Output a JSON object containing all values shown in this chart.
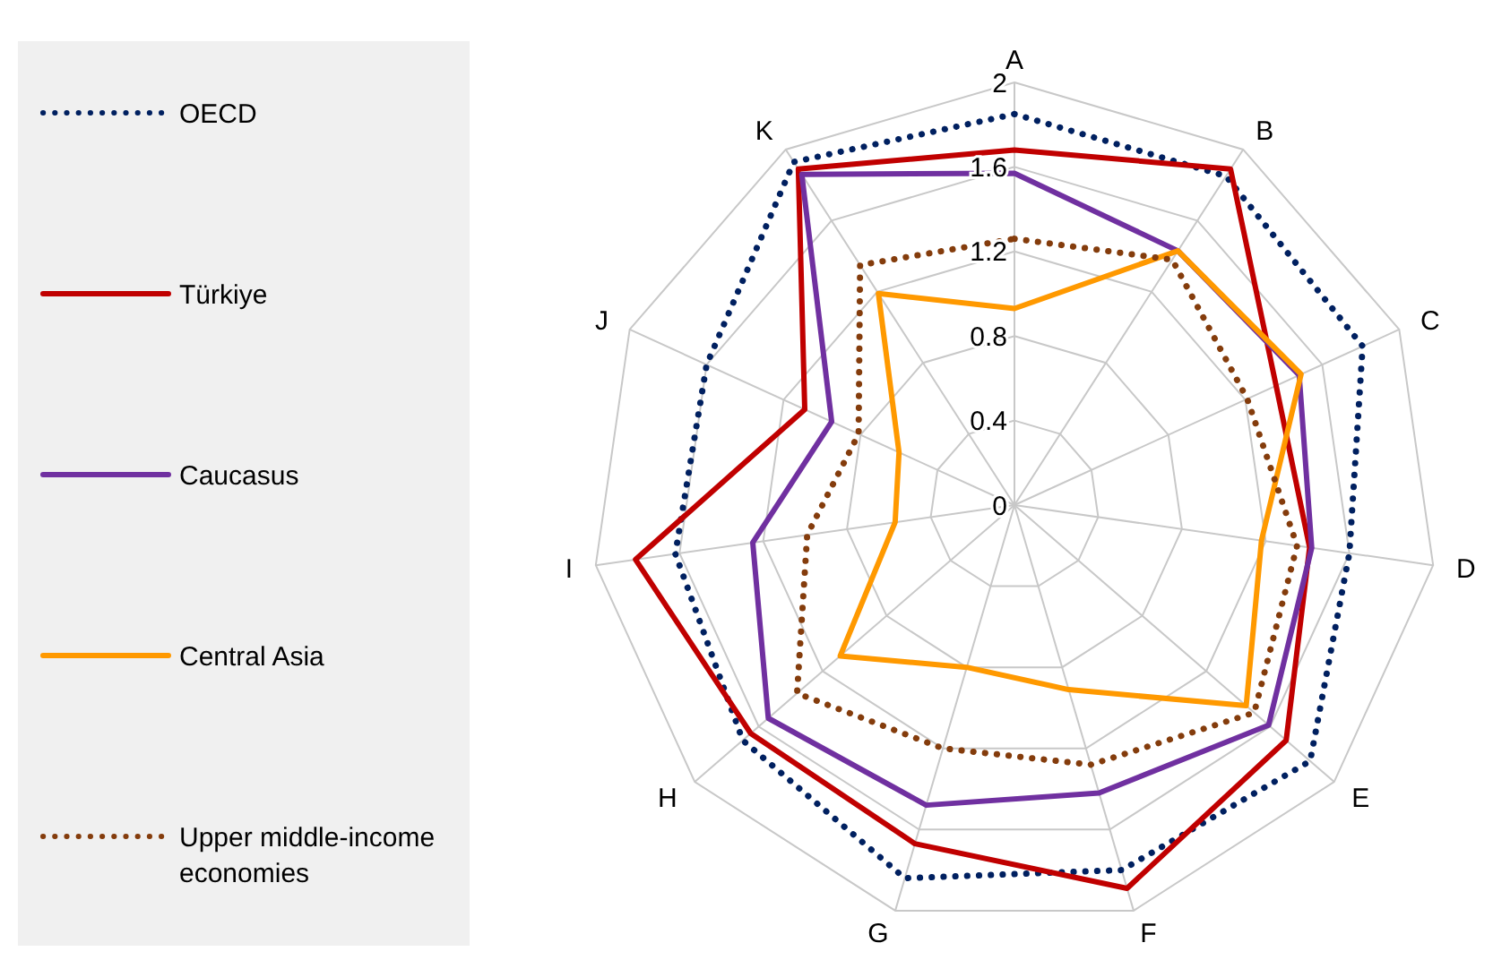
{
  "chart_data": {
    "type": "radar",
    "categories": [
      "A",
      "B",
      "C",
      "D",
      "E",
      "F",
      "G",
      "H",
      "I",
      "J",
      "K"
    ],
    "ylim": [
      0,
      2
    ],
    "yticks": [
      0,
      0.4,
      0.8,
      1.2,
      1.6,
      2
    ],
    "grid": true,
    "legend": "left",
    "series": [
      {
        "name": "OECD",
        "color": "#002060",
        "line_style": "dotted",
        "values": [
          1.85,
          1.85,
          1.81,
          1.6,
          1.85,
          1.8,
          1.84,
          1.7,
          1.62,
          1.6,
          1.93
        ]
      },
      {
        "name": "Türkiye",
        "color": "#c00000",
        "line_style": "solid",
        "values": [
          1.68,
          1.89,
          1.36,
          1.41,
          1.7,
          1.89,
          1.67,
          1.65,
          1.81,
          1.09,
          1.89
        ]
      },
      {
        "name": "Caucasus",
        "color": "#7030a0",
        "line_style": "solid",
        "values": [
          1.57,
          1.43,
          1.48,
          1.42,
          1.59,
          1.42,
          1.48,
          1.54,
          1.25,
          0.95,
          1.86
        ]
      },
      {
        "name": "Central Asia",
        "color": "#ff9900",
        "line_style": "solid",
        "values": [
          0.93,
          1.43,
          1.49,
          1.18,
          1.45,
          0.91,
          0.8,
          1.09,
          0.57,
          0.6,
          1.19
        ]
      },
      {
        "name": "Upper middle-income economies",
        "color": "#843c0c",
        "line_style": "dotted",
        "values": [
          1.26,
          1.38,
          1.21,
          1.35,
          1.5,
          1.28,
          1.2,
          1.36,
          0.99,
          0.81,
          1.35
        ]
      }
    ]
  }
}
